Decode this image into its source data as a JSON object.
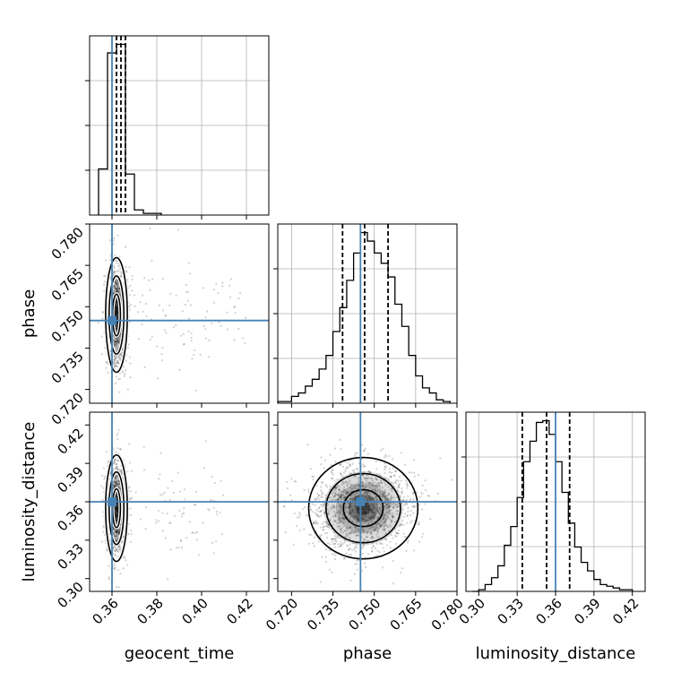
{
  "chart_data": {
    "type": "corner",
    "colors": {
      "truth": "#4682b4",
      "hist": "#000000",
      "grid": "#b0b0b0",
      "samples": "#000000"
    },
    "parameters": [
      {
        "name": "geocent_time",
        "range": [
          0.35,
          0.43
        ],
        "ticks": [
          "0.36",
          "0.38",
          "0.40",
          "0.42"
        ],
        "tick_values": [
          0.36,
          0.38,
          0.4,
          0.42
        ],
        "truth": 0.36,
        "quantiles": [
          0.362,
          0.364,
          0.366
        ]
      },
      {
        "name": "phase",
        "range": [
          0.715,
          0.78
        ],
        "ticks": [
          "0.720",
          "0.735",
          "0.750",
          "0.765",
          "0.780"
        ],
        "tick_values": [
          0.72,
          0.735,
          0.75,
          0.765,
          0.78
        ],
        "truth": 0.745,
        "quantiles": [
          0.7385,
          0.7465,
          0.755
        ]
      },
      {
        "name": "luminosity_distance",
        "range": [
          0.29,
          0.43
        ],
        "ticks": [
          "0.30",
          "0.33",
          "0.36",
          "0.39",
          "0.42"
        ],
        "tick_values": [
          0.3,
          0.33,
          0.36,
          0.39,
          0.42
        ],
        "truth": 0.36,
        "quantiles": [
          0.334,
          0.353,
          0.371
        ]
      }
    ],
    "histograms": [
      {
        "param": "geocent_time",
        "bin_edges": [
          0.354,
          0.358,
          0.362,
          0.366,
          0.37,
          0.374,
          0.378,
          0.382
        ],
        "counts": [
          27,
          95,
          100,
          24,
          3,
          1,
          1
        ]
      },
      {
        "param": "phase",
        "bin_edges": [
          0.715,
          0.7175,
          0.72,
          0.7225,
          0.725,
          0.7275,
          0.73,
          0.7325,
          0.735,
          0.7375,
          0.74,
          0.7425,
          0.745,
          0.7475,
          0.75,
          0.7525,
          0.755,
          0.7575,
          0.76,
          0.7625,
          0.765,
          0.7675,
          0.77,
          0.7725,
          0.775,
          0.7775
        ],
        "counts": [
          1,
          1,
          4,
          6,
          10,
          14,
          20,
          28,
          42,
          56,
          72,
          88,
          100,
          95,
          88,
          82,
          74,
          58,
          45,
          28,
          16,
          9,
          6,
          2,
          1
        ]
      },
      {
        "param": "luminosity_distance",
        "bin_edges": [
          0.295,
          0.3,
          0.305,
          0.31,
          0.315,
          0.32,
          0.325,
          0.33,
          0.335,
          0.34,
          0.345,
          0.35,
          0.355,
          0.36,
          0.365,
          0.37,
          0.375,
          0.38,
          0.385,
          0.39,
          0.395,
          0.4,
          0.405,
          0.41,
          0.415,
          0.42
        ],
        "counts": [
          0,
          1,
          4,
          8,
          15,
          27,
          38,
          55,
          76,
          88,
          99,
          100,
          92,
          76,
          58,
          40,
          26,
          17,
          12,
          7,
          4,
          3,
          2,
          1,
          1
        ]
      }
    ],
    "joint": [
      {
        "x": "geocent_time",
        "y": "phase",
        "center": [
          0.362,
          0.747
        ],
        "sigma": [
          0.002,
          0.009
        ],
        "outlier_x_max": 0.42
      },
      {
        "x": "geocent_time",
        "y": "luminosity_distance",
        "center": [
          0.362,
          0.355
        ],
        "sigma": [
          0.002,
          0.018
        ],
        "outlier_x_max": 0.41
      },
      {
        "x": "phase",
        "y": "luminosity_distance",
        "center": [
          0.746,
          0.355
        ],
        "sigma": [
          0.009,
          0.018
        ],
        "outlier_x_max": 0.78
      }
    ]
  }
}
